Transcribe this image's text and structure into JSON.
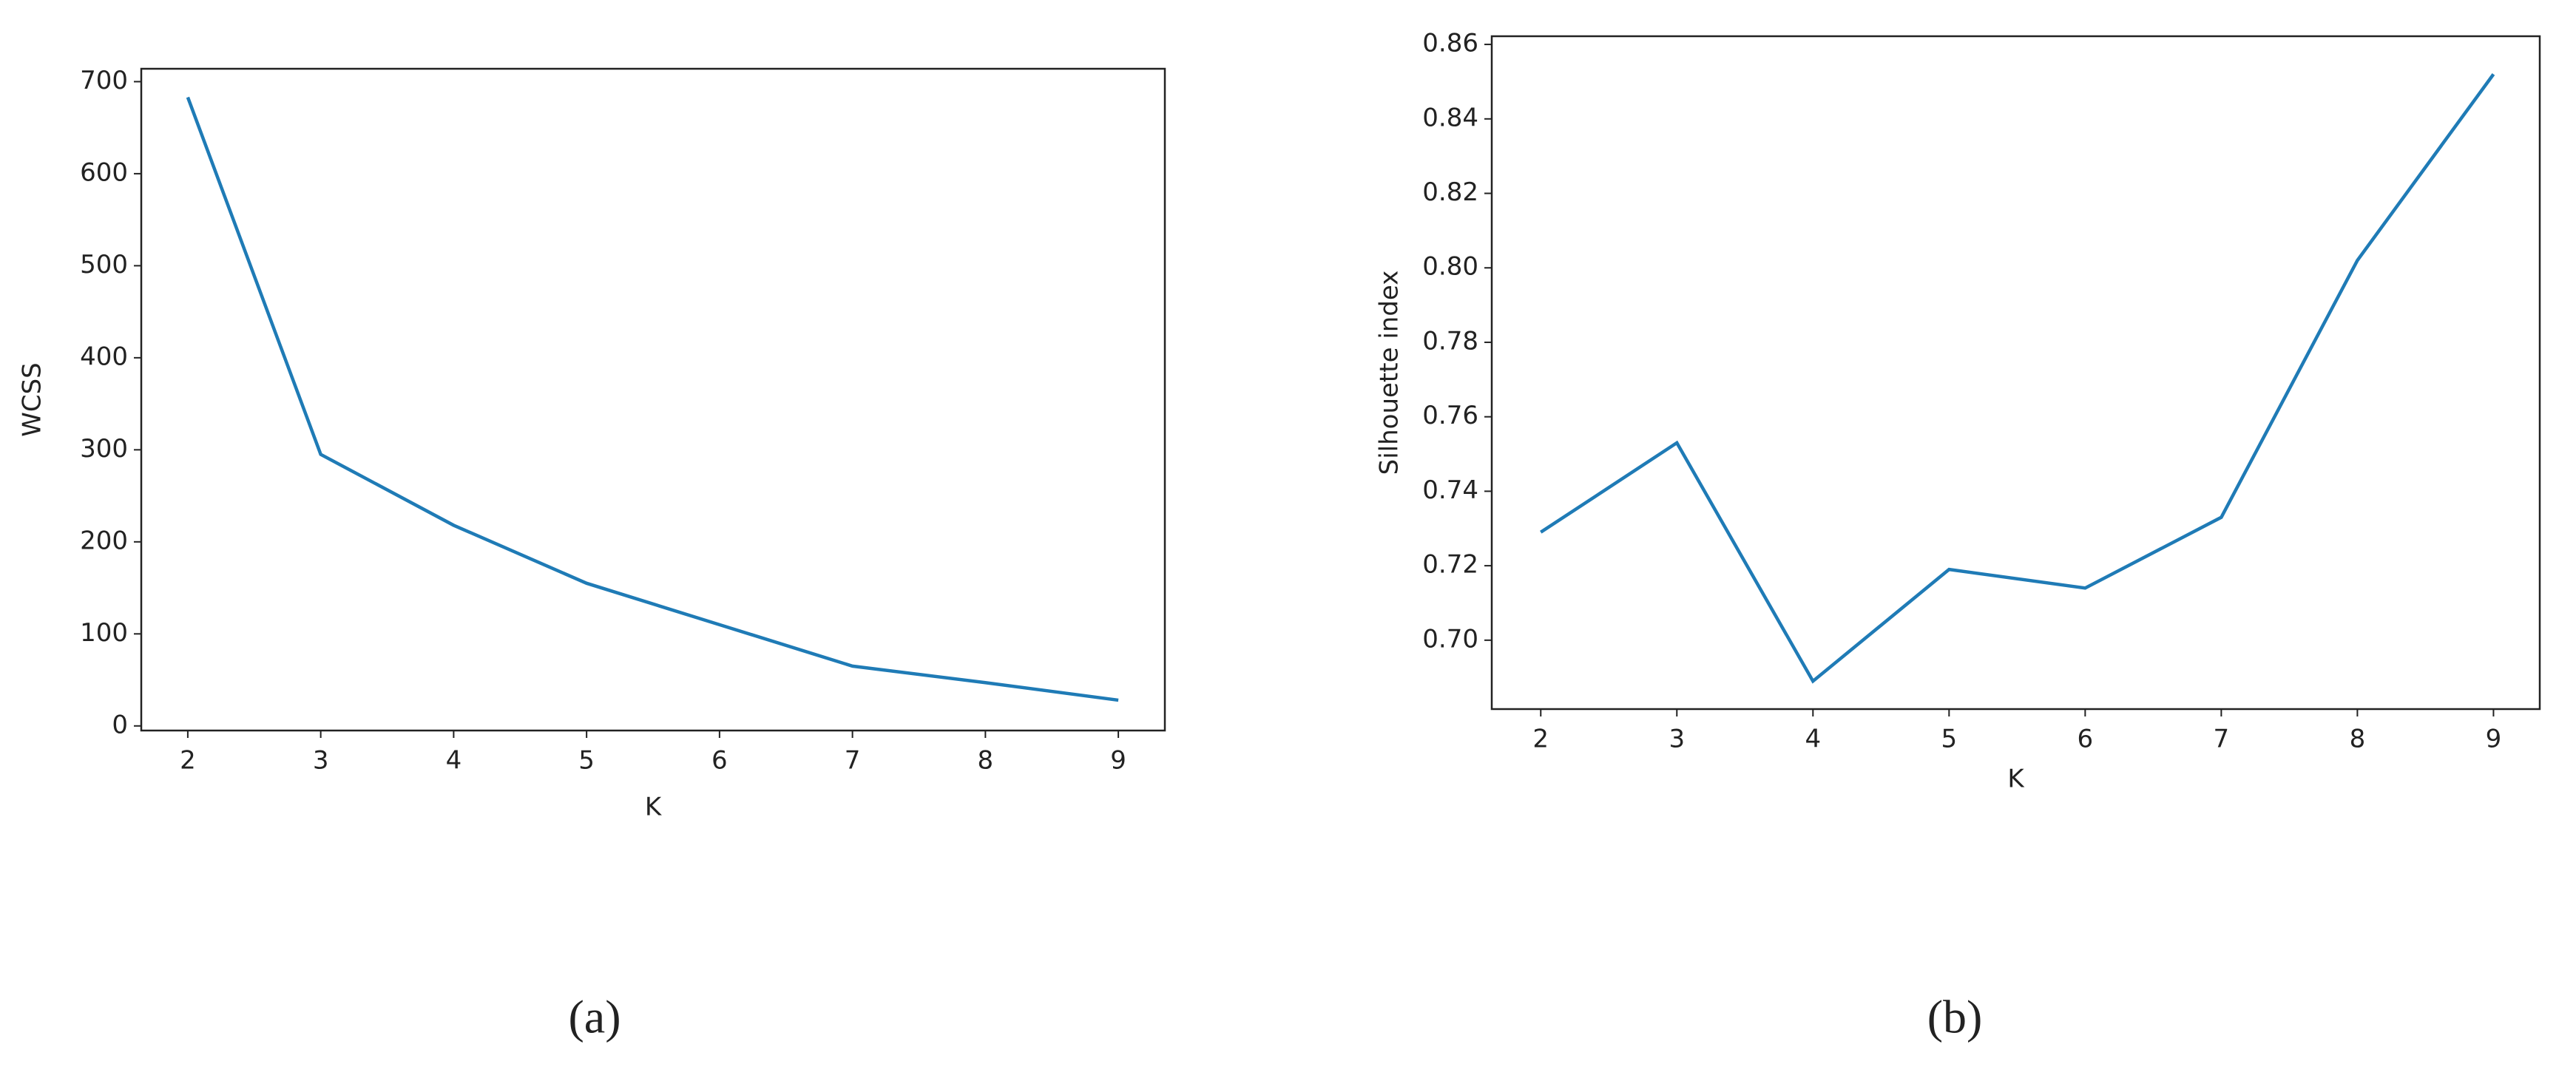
{
  "chart_data": [
    {
      "type": "line",
      "caption": "(a)",
      "x_label": "K",
      "y_label": "WCSS",
      "x": [
        2,
        3,
        4,
        5,
        6,
        7,
        8,
        9
      ],
      "series": [
        {
          "color": "#1f7bb6",
          "values": [
            683,
            295,
            218,
            155,
            110,
            65,
            47,
            28
          ]
        }
      ],
      "xlim": [
        1.65,
        9.35
      ],
      "ylim": [
        -5,
        714
      ],
      "xticks": [
        2,
        3,
        4,
        5,
        6,
        7,
        8,
        9
      ],
      "yticks": [
        0,
        100,
        200,
        300,
        400,
        500,
        600,
        700
      ]
    },
    {
      "type": "line",
      "caption": "(b)",
      "x_label": "K",
      "y_label": "Silhouette index",
      "x": [
        2,
        3,
        4,
        5,
        6,
        7,
        8,
        9
      ],
      "series": [
        {
          "color": "#1f7bb6",
          "values": [
            0.729,
            0.753,
            0.689,
            0.719,
            0.714,
            0.733,
            0.802,
            0.852
          ]
        }
      ],
      "xlim": [
        1.64,
        9.34
      ],
      "ylim": [
        0.6815,
        0.8622
      ],
      "xticks": [
        2,
        3,
        4,
        5,
        6,
        7,
        8,
        9
      ],
      "yticks": [
        {
          "value": 0.7,
          "label": "0.70"
        },
        0.72,
        0.74,
        0.76,
        0.78,
        {
          "value": 0.8,
          "label": "0.80"
        },
        0.82,
        0.84,
        0.86
      ]
    }
  ]
}
